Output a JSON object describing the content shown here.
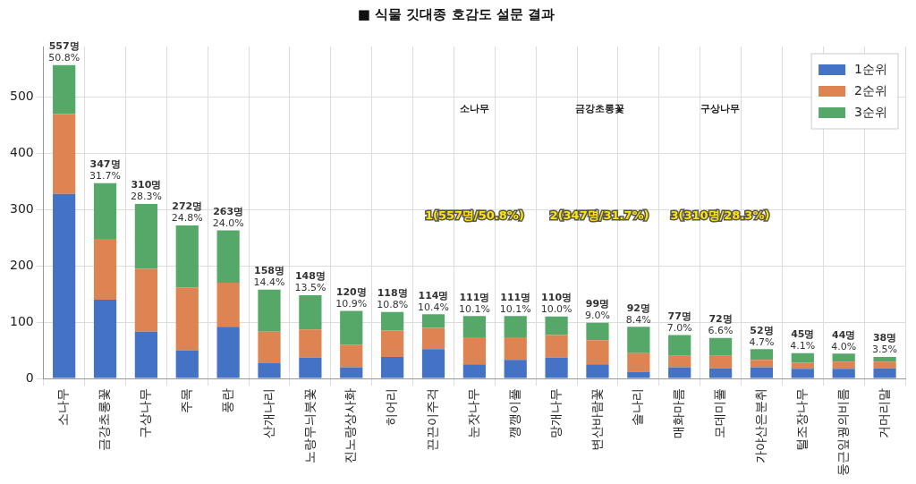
{
  "chart_data": {
    "type": "bar",
    "title": "■ 식물 깃대종 호감도 설문 결과",
    "categories": [
      "소나무",
      "금강초롱꽃",
      "구상나무",
      "주목",
      "풍란",
      "산개나리",
      "노랑무늬붓꽃",
      "진노랑상사화",
      "히어리",
      "끈끈이주걱",
      "눈잣나무",
      "깽깽이풀",
      "망개나무",
      "변산바람꽃",
      "솔나리",
      "매화마름",
      "모데미풀",
      "가야산은분취",
      "털조장나무",
      "둥근잎꿩의비름",
      "거머리말"
    ],
    "series": [
      {
        "name": "1순위",
        "color": "#4472c4",
        "values": [
          328,
          140,
          83,
          50,
          92,
          27,
          37,
          20,
          38,
          52,
          25,
          33,
          37,
          25,
          12,
          20,
          18,
          20,
          17,
          17,
          18
        ]
      },
      {
        "name": "2순위",
        "color": "#dd8452",
        "values": [
          142,
          108,
          112,
          112,
          78,
          56,
          50,
          40,
          47,
          38,
          48,
          40,
          40,
          43,
          33,
          20,
          22,
          13,
          11,
          13,
          12
        ]
      },
      {
        "name": "3순위",
        "color": "#55a868",
        "values": [
          87,
          99,
          115,
          110,
          93,
          75,
          61,
          60,
          33,
          24,
          38,
          38,
          33,
          31,
          47,
          37,
          32,
          19,
          17,
          14,
          8
        ]
      }
    ],
    "totals": [
      557,
      347,
      310,
      272,
      263,
      158,
      148,
      120,
      118,
      114,
      111,
      111,
      110,
      99,
      92,
      77,
      72,
      52,
      45,
      44,
      38
    ],
    "total_labels": [
      "557명",
      "347명",
      "310명",
      "272명",
      "263명",
      "158명",
      "148명",
      "120명",
      "118명",
      "114명",
      "111명",
      "111명",
      "110명",
      "99명",
      "92명",
      "77명",
      "72명",
      "52명",
      "45명",
      "44명",
      "38명"
    ],
    "percentages": [
      50.8,
      31.7,
      28.3,
      24.8,
      24.0,
      14.4,
      13.5,
      10.9,
      10.8,
      10.4,
      10.1,
      10.1,
      10.0,
      9.0,
      8.4,
      7.0,
      6.6,
      4.7,
      4.1,
      4.0,
      3.5
    ],
    "percentage_labels": [
      "50.8%",
      "31.7%",
      "28.3%",
      "24.8%",
      "24.0%",
      "14.4%",
      "13.5%",
      "10.9%",
      "10.8%",
      "10.4%",
      "10.1%",
      "10.1%",
      "10.0%",
      "9.0%",
      "8.4%",
      "7.0%",
      "6.6%",
      "4.7%",
      "4.1%",
      "4.0%",
      "3.5%"
    ],
    "annotations": [
      {
        "name": "소나무",
        "text": "1(557명/50.8%)"
      },
      {
        "name": "금강초롱꽃",
        "text": "2(347명/31.7%)"
      },
      {
        "name": "구상나무",
        "text": "3(310명/28.3%)"
      }
    ],
    "ylim": [
      0,
      590
    ],
    "yticks": [
      0,
      100,
      200,
      300,
      400,
      500
    ],
    "stacked": true,
    "grid": true,
    "legend": "upper right",
    "data_labels": true
  }
}
